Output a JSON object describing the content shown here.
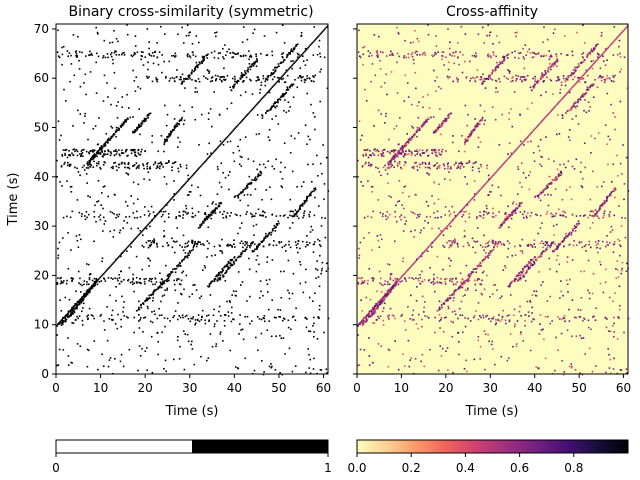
{
  "chart_data": [
    {
      "type": "heatmap",
      "title": "Binary cross-similarity (symmetric)",
      "xlabel": "Time (s)",
      "ylabel": "Time (s)",
      "xlim": [
        0,
        61
      ],
      "ylim": [
        0,
        71
      ],
      "xticks": [
        "0",
        "10",
        "20",
        "30",
        "40",
        "50",
        "60"
      ],
      "yticks": [
        "0",
        "10",
        "20",
        "30",
        "40",
        "50",
        "60",
        "70"
      ],
      "colormap": "gray_r",
      "background_color": "#ffffff",
      "mark_color": "#000000",
      "main_diagonal": {
        "from": [
          0,
          10
        ],
        "to": [
          61,
          71
        ]
      },
      "diagonal_segments": [
        {
          "x": [
            0,
            9
          ],
          "y": [
            10,
            19
          ]
        },
        {
          "x": [
            1,
            9
          ],
          "y": [
            10,
            19
          ]
        },
        {
          "x": [
            3,
            9
          ],
          "y": [
            12,
            19
          ]
        },
        {
          "x": [
            7,
            11
          ],
          "y": [
            43,
            47
          ]
        },
        {
          "x": [
            11,
            16
          ],
          "y": [
            47,
            52
          ]
        },
        {
          "x": [
            17,
            21
          ],
          "y": [
            49,
            53
          ]
        },
        {
          "x": [
            24,
            28
          ],
          "y": [
            47,
            52
          ]
        },
        {
          "x": [
            18,
            24
          ],
          "y": [
            13,
            19
          ]
        },
        {
          "x": [
            24,
            32
          ],
          "y": [
            19,
            27
          ]
        },
        {
          "x": [
            34,
            40
          ],
          "y": [
            18,
            24
          ]
        },
        {
          "x": [
            36,
            44
          ],
          "y": [
            19,
            27
          ]
        },
        {
          "x": [
            40,
            46
          ],
          "y": [
            36,
            41
          ]
        },
        {
          "x": [
            47,
            53
          ],
          "y": [
            53,
            59
          ]
        },
        {
          "x": [
            47,
            54
          ],
          "y": [
            60,
            67
          ]
        },
        {
          "x": [
            44,
            50
          ],
          "y": [
            25,
            31
          ]
        },
        {
          "x": [
            53,
            58
          ],
          "y": [
            32,
            38
          ]
        },
        {
          "x": [
            28,
            34
          ],
          "y": [
            59,
            65
          ]
        },
        {
          "x": [
            39,
            45
          ],
          "y": [
            58,
            64
          ]
        },
        {
          "x": [
            32,
            37
          ],
          "y": [
            30,
            35
          ]
        }
      ],
      "horizontal_bands": [
        {
          "y": 11.5,
          "x": [
            2,
            60
          ]
        },
        {
          "y": 19,
          "x": [
            0,
            28
          ]
        },
        {
          "y": 32.5,
          "x": [
            2,
            60
          ]
        },
        {
          "y": 45,
          "x": [
            1,
            20
          ]
        },
        {
          "y": 65,
          "x": [
            0,
            60
          ]
        },
        {
          "y": 60,
          "x": [
            20,
            58
          ]
        },
        {
          "y": 42.5,
          "x": [
            1,
            30
          ]
        },
        {
          "y": 26.5,
          "x": [
            20,
            60
          ]
        }
      ],
      "colorbar": {
        "ticks": [
          "0",
          "1"
        ],
        "range": [
          0,
          1
        ]
      }
    },
    {
      "type": "heatmap",
      "title": "Cross-affinity",
      "xlabel": "Time (s)",
      "ylabel": "",
      "xlim": [
        0,
        61
      ],
      "ylim": [
        0,
        71
      ],
      "xticks": [
        "0",
        "10",
        "20",
        "30",
        "40",
        "50",
        "60"
      ],
      "colormap": "magma_r",
      "background_color": "#fcfdbf",
      "mark_colors": [
        "#b73779",
        "#8c2981",
        "#721f81",
        "#e75263",
        "#51127c"
      ],
      "colorbar": {
        "ticks": [
          "0.0",
          "0.2",
          "0.4",
          "0.6",
          "0.8"
        ],
        "range": [
          0,
          1
        ],
        "colors": [
          "#fcfdbf",
          "#fecf92",
          "#fd9668",
          "#f1605d",
          "#cd4071",
          "#9e2f7f",
          "#721f81",
          "#440f76",
          "#180f3d",
          "#000004"
        ]
      }
    }
  ]
}
